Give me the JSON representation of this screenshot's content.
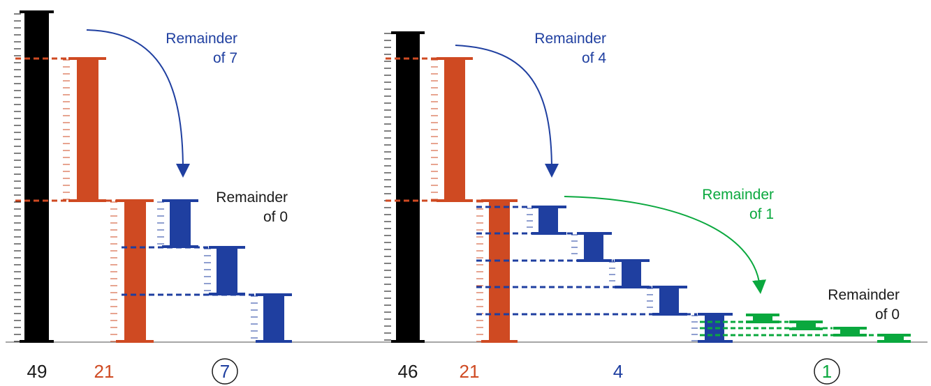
{
  "colors": {
    "black": "#000000",
    "orange": "#cf4a22",
    "blue": "#1f3fa0",
    "green": "#0aa83e",
    "text": "#1a1a1a"
  },
  "left": {
    "values": {
      "a": "49",
      "b": "21",
      "gcd": "7"
    },
    "remainder_1": {
      "line1": "Remainder",
      "line2": "of 7"
    },
    "remainder_2": {
      "line1": "Remainder",
      "line2": "of 0"
    }
  },
  "right": {
    "values": {
      "a": "46",
      "b": "21",
      "c": "4",
      "gcd": "1"
    },
    "remainder_1": {
      "line1": "Remainder",
      "line2": "of 4"
    },
    "remainder_2": {
      "line1": "Remainder",
      "line2": "of 1"
    },
    "remainder_3": {
      "line1": "Remainder",
      "line2": "of 0"
    }
  }
}
